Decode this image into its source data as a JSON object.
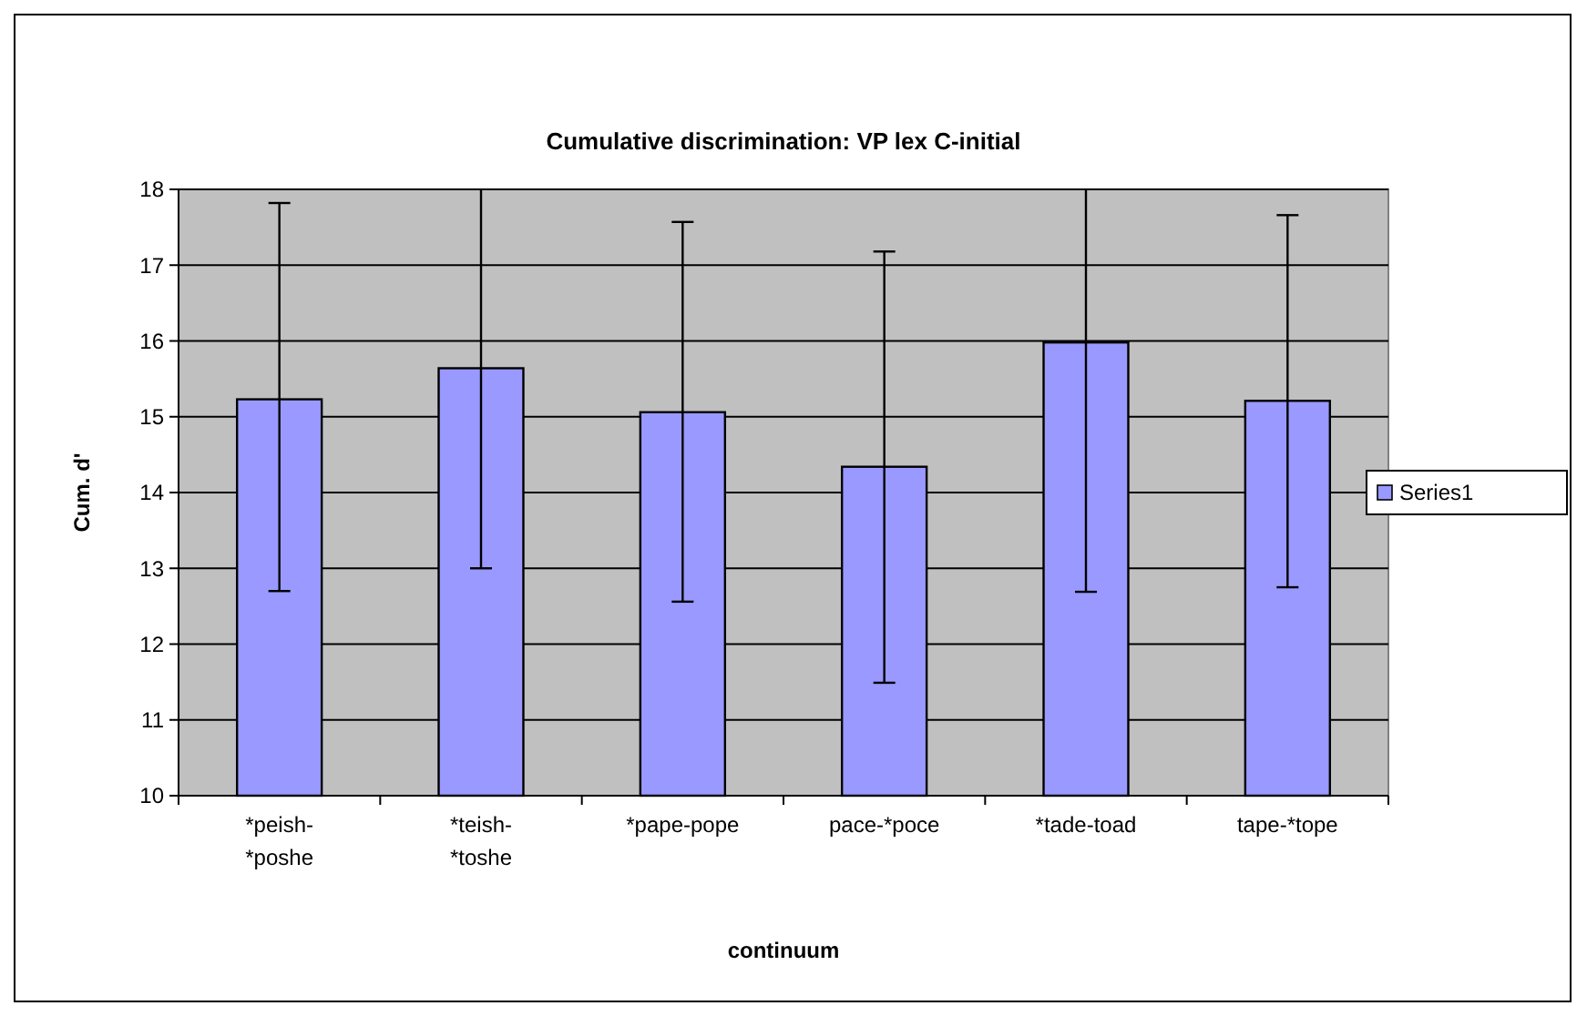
{
  "chart_data": {
    "type": "bar",
    "title": "Cumulative discrimination: VP lex C-initial",
    "xlabel": "continuum",
    "ylabel": "Cum. d'",
    "categories": [
      "*peish-*poshe",
      "*teish-*toshe",
      "*pape-pope",
      "pace-*poce",
      "*tade-toad",
      "tape-*tope"
    ],
    "series": [
      {
        "name": "Series1",
        "color": "#9999ff",
        "values": [
          15.23,
          15.64,
          15.06,
          14.34,
          15.98,
          15.21
        ],
        "errors": [
          [
            12.7,
            17.82
          ],
          [
            13.0,
            18
          ],
          [
            12.56,
            17.57
          ],
          [
            11.49,
            17.18
          ],
          [
            12.69,
            18
          ],
          [
            12.75,
            17.66
          ]
        ]
      }
    ],
    "ylim": [
      10,
      18
    ],
    "yticks": [
      10,
      11,
      12,
      13,
      14,
      15,
      16,
      17,
      18
    ],
    "grid": "y",
    "legend": "right"
  }
}
